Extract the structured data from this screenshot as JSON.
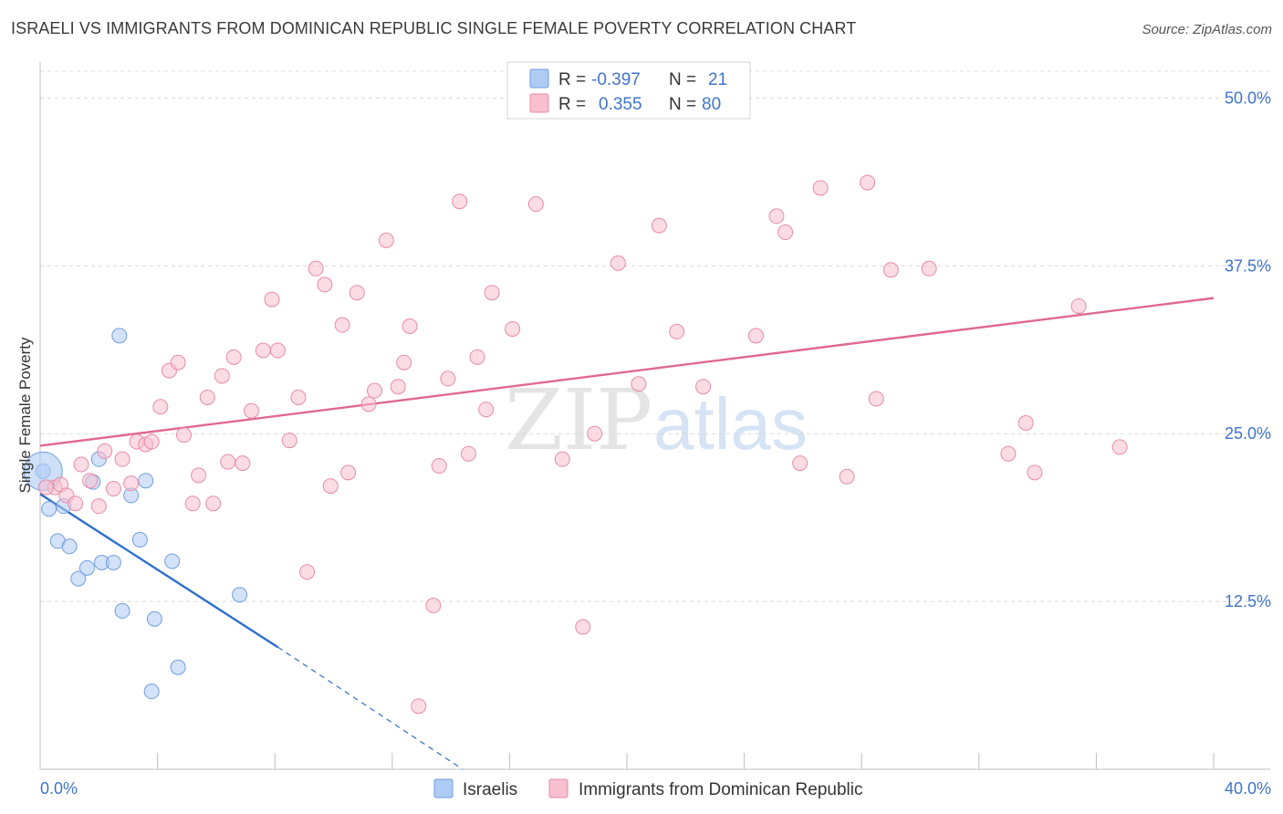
{
  "header": {
    "title": "ISRAELI VS IMMIGRANTS FROM DOMINICAN REPUBLIC SINGLE FEMALE POVERTY CORRELATION CHART",
    "source": "Source: ZipAtlas.com"
  },
  "watermark": {
    "zip": "ZIP",
    "atlas": "atlas"
  },
  "legend": {
    "rows": [
      {
        "r_label": "R =",
        "r_value": "-0.397",
        "n_label": "N =",
        "n_value": "21",
        "color": "#aecbf4",
        "stroke": "#6f9ee0"
      },
      {
        "r_label": "R =",
        "r_value": "0.355",
        "n_label": "N =",
        "n_value": "80",
        "color": "#f7bfd0",
        "stroke": "#e88aa8"
      }
    ],
    "bottom": [
      "Israelis",
      "Immigrants from Dominican Republic"
    ]
  },
  "chart_data": {
    "type": "scatter",
    "ylabel": "Single Female Poverty",
    "xlim": [
      0,
      40
    ],
    "ylim": [
      0,
      52
    ],
    "y_ticks": [
      {
        "value": 12.5,
        "label": "12.5%"
      },
      {
        "value": 25.0,
        "label": "25.0%"
      },
      {
        "value": 37.5,
        "label": "37.5%"
      },
      {
        "value": 50.0,
        "label": "50.0%"
      }
    ],
    "x_tick_labels": {
      "min": "0.0%",
      "max": "40.0%"
    },
    "grid": true,
    "series": [
      {
        "name": "Israelis",
        "color": "#aecbf4",
        "stroke": "#6f9ee0",
        "line_color": "#2d6fcc",
        "trend": {
          "x0": 0,
          "y0": 20.5,
          "x1": 8.1,
          "y1": 9.1,
          "dash_x_end": 14.4,
          "dash_y_end": 0
        },
        "points": [
          [
            0.1,
            22.2
          ],
          [
            0.3,
            19.4
          ],
          [
            0.6,
            17.0
          ],
          [
            0.8,
            19.6
          ],
          [
            1.0,
            16.6
          ],
          [
            1.3,
            14.2
          ],
          [
            1.6,
            15.0
          ],
          [
            1.8,
            21.4
          ],
          [
            2.0,
            23.1
          ],
          [
            2.1,
            15.4
          ],
          [
            2.5,
            15.4
          ],
          [
            2.7,
            32.3
          ],
          [
            2.8,
            11.8
          ],
          [
            3.1,
            20.4
          ],
          [
            3.4,
            17.1
          ],
          [
            3.6,
            21.5
          ],
          [
            3.9,
            11.2
          ],
          [
            3.8,
            5.8
          ],
          [
            4.5,
            15.5
          ],
          [
            4.7,
            7.6
          ],
          [
            6.8,
            13.0
          ]
        ],
        "big_point": [
          0.1,
          22.2
        ]
      },
      {
        "name": "Immigrants from Dominican Republic",
        "color": "#f7bfd0",
        "stroke": "#e88aa8",
        "line_color": "#e0688f",
        "trend": {
          "x0": 0,
          "y0": 24.1,
          "x1": 40,
          "y1": 35.1
        },
        "points": [
          [
            0.5,
            21.0
          ],
          [
            0.7,
            21.2
          ],
          [
            0.9,
            20.4
          ],
          [
            1.2,
            19.8
          ],
          [
            1.4,
            22.7
          ],
          [
            1.7,
            21.5
          ],
          [
            2.0,
            19.6
          ],
          [
            2.2,
            23.7
          ],
          [
            2.5,
            20.9
          ],
          [
            2.8,
            23.1
          ],
          [
            3.1,
            21.3
          ],
          [
            3.3,
            24.4
          ],
          [
            3.6,
            24.2
          ],
          [
            3.8,
            24.4
          ],
          [
            4.1,
            27.0
          ],
          [
            4.4,
            29.7
          ],
          [
            4.7,
            30.3
          ],
          [
            4.9,
            24.9
          ],
          [
            5.2,
            19.8
          ],
          [
            5.4,
            21.9
          ],
          [
            5.7,
            27.7
          ],
          [
            5.9,
            19.8
          ],
          [
            6.2,
            29.3
          ],
          [
            6.4,
            22.9
          ],
          [
            6.6,
            30.7
          ],
          [
            6.9,
            22.8
          ],
          [
            7.2,
            26.7
          ],
          [
            7.6,
            31.2
          ],
          [
            7.9,
            35.0
          ],
          [
            8.1,
            31.2
          ],
          [
            8.5,
            24.5
          ],
          [
            8.8,
            27.7
          ],
          [
            9.1,
            14.7
          ],
          [
            9.4,
            37.3
          ],
          [
            9.7,
            36.1
          ],
          [
            9.9,
            21.1
          ],
          [
            10.3,
            33.1
          ],
          [
            10.5,
            22.1
          ],
          [
            10.8,
            35.5
          ],
          [
            11.2,
            27.2
          ],
          [
            11.4,
            28.2
          ],
          [
            11.8,
            39.4
          ],
          [
            12.2,
            28.5
          ],
          [
            12.4,
            30.3
          ],
          [
            12.6,
            33.0
          ],
          [
            12.9,
            4.7
          ],
          [
            13.4,
            12.2
          ],
          [
            13.6,
            22.6
          ],
          [
            13.9,
            29.1
          ],
          [
            14.3,
            42.3
          ],
          [
            14.6,
            23.5
          ],
          [
            14.9,
            30.7
          ],
          [
            15.2,
            26.8
          ],
          [
            15.4,
            35.5
          ],
          [
            16.1,
            32.8
          ],
          [
            16.9,
            42.1
          ],
          [
            17.8,
            23.1
          ],
          [
            18.5,
            10.6
          ],
          [
            18.9,
            25.0
          ],
          [
            19.7,
            37.7
          ],
          [
            20.4,
            28.7
          ],
          [
            21.1,
            40.5
          ],
          [
            21.7,
            32.6
          ],
          [
            22.6,
            28.5
          ],
          [
            24.4,
            32.3
          ],
          [
            25.1,
            41.2
          ],
          [
            25.4,
            40.0
          ],
          [
            25.9,
            22.8
          ],
          [
            26.6,
            43.3
          ],
          [
            27.5,
            21.8
          ],
          [
            28.2,
            43.7
          ],
          [
            28.5,
            27.6
          ],
          [
            29.0,
            37.2
          ],
          [
            30.3,
            37.3
          ],
          [
            33.0,
            23.5
          ],
          [
            33.6,
            25.8
          ],
          [
            33.9,
            22.1
          ],
          [
            35.4,
            34.5
          ],
          [
            36.8,
            24.0
          ],
          [
            0.2,
            21.0
          ]
        ]
      }
    ]
  }
}
